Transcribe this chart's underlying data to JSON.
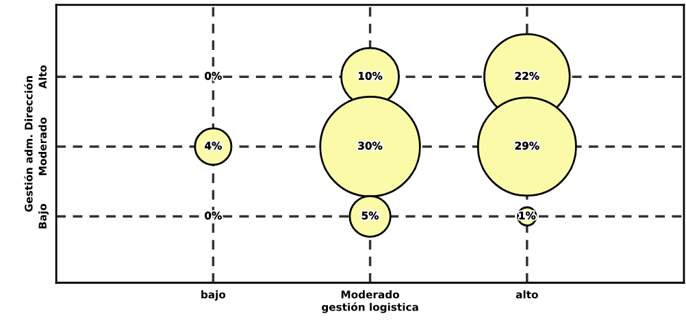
{
  "chart_data": {
    "type": "heatmap",
    "xlabel": "gestión logistica",
    "ylabel": "Gestión adm. Dirección",
    "categories": [
      "bajo",
      "Moderado",
      "alto"
    ],
    "y_categories": [
      "Alto",
      "Moderado",
      "Bajo"
    ],
    "grid": true,
    "line_style": "dashed",
    "color": "#fafaa8",
    "cells": [
      [
        0,
        10,
        22
      ],
      [
        4,
        30,
        29
      ],
      [
        0,
        5,
        1
      ]
    ],
    "cell_labels": [
      [
        "0%",
        "10%",
        "22%"
      ],
      [
        "4%",
        "30%",
        "29%"
      ],
      [
        "0%",
        "5%",
        "1%"
      ]
    ]
  }
}
